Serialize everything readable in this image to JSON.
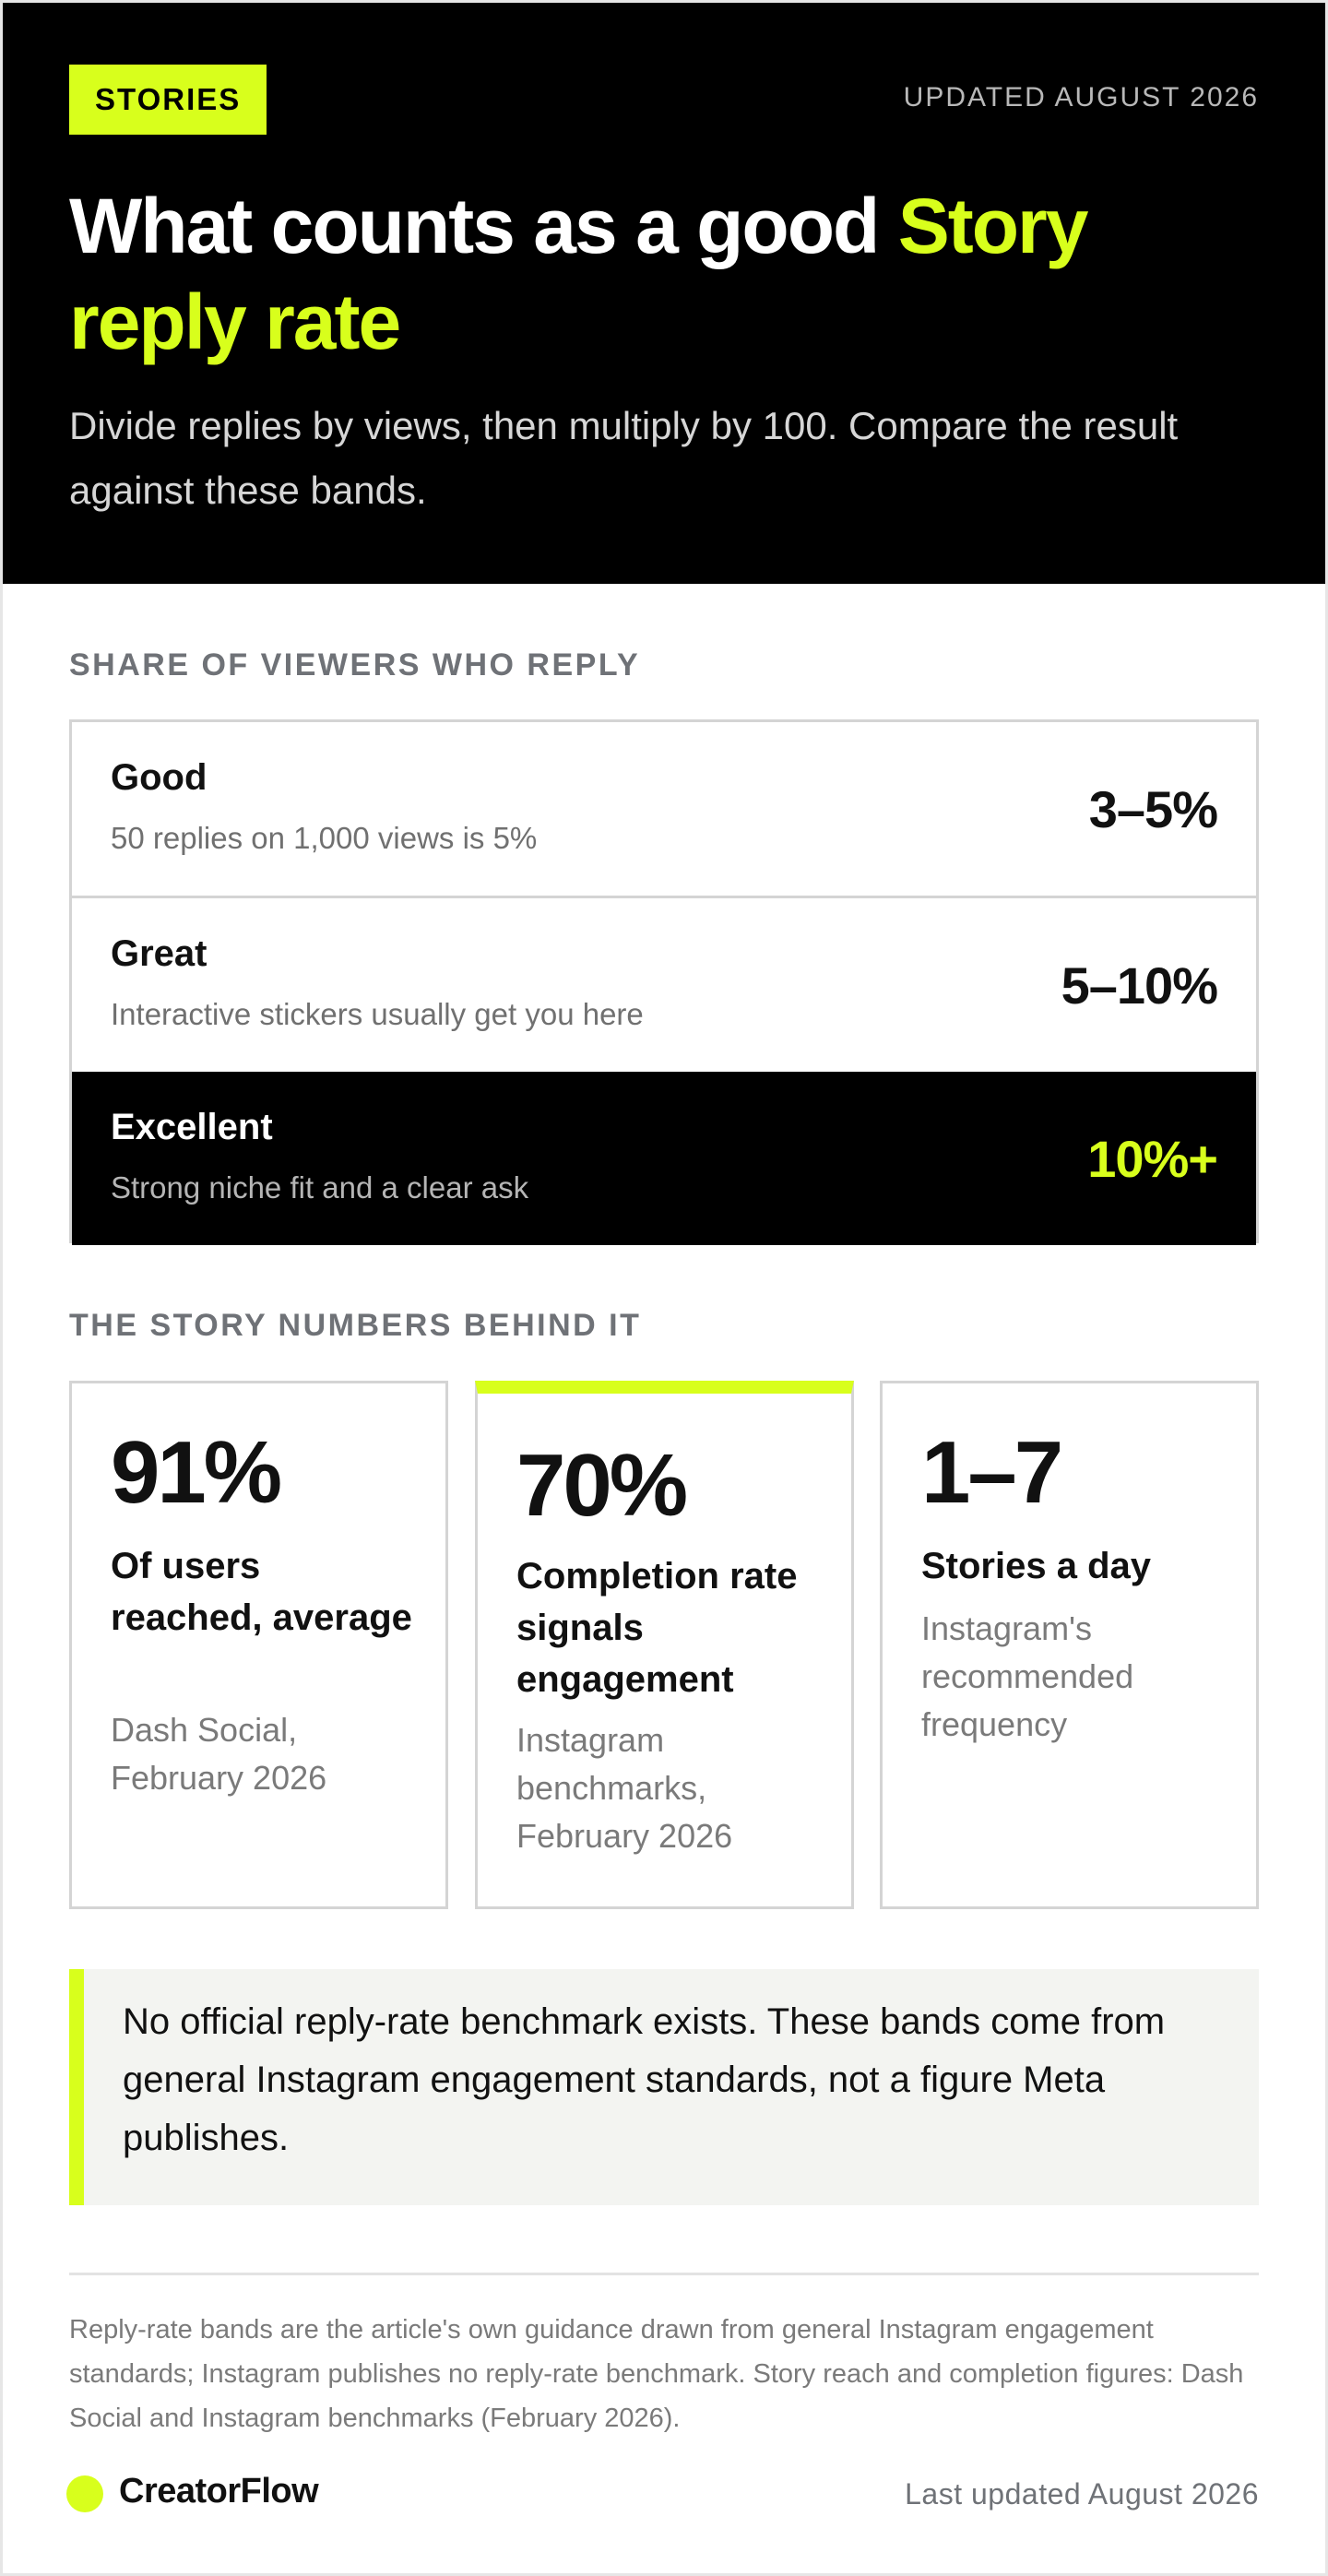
{
  "header": {
    "tag": "STORIES",
    "updated": "UPDATED AUGUST 2026",
    "title_main": "What counts as a good ",
    "title_accent": "Story reply rate",
    "subtitle": "Divide replies by views, then multiply by 100. Compare the result against these bands.",
    "accent_color": "#d8ff1c"
  },
  "bands_section": {
    "label": "SHARE OF VIEWERS WHO REPLY",
    "bands": [
      {
        "name": "Good",
        "desc": "50 replies on 1,000 views is 5%",
        "range": "3–5%"
      },
      {
        "name": "Great",
        "desc": "Interactive stickers usually get you here",
        "range": "5–10%"
      },
      {
        "name": "Excellent",
        "desc": "Strong niche fit and a clear ask",
        "range": "10%+"
      }
    ]
  },
  "stats_section": {
    "label": "THE STORY NUMBERS BEHIND IT",
    "stats": [
      {
        "value": "91%",
        "label": "Of users reached, average",
        "source": "Dash Social, February 2026"
      },
      {
        "value": "70%",
        "label": "Completion rate signals engagement",
        "source": "Instagram benchmarks, February 2026"
      },
      {
        "value": "1–7",
        "label": "Stories a day",
        "source": "Instagram's recommended frequency"
      }
    ]
  },
  "note": "No official reply-rate benchmark exists. These bands come from general Instagram engagement standards, not a figure Meta publishes.",
  "footer": {
    "footnote": "Reply-rate bands are the article's own guidance drawn from general Instagram engagement standards; Instagram publishes no reply-rate benchmark. Story reach and completion figures: Dash Social and Instagram benchmarks (February 2026).",
    "brand": "CreatorFlow",
    "last_updated": "Last updated August 2026"
  }
}
